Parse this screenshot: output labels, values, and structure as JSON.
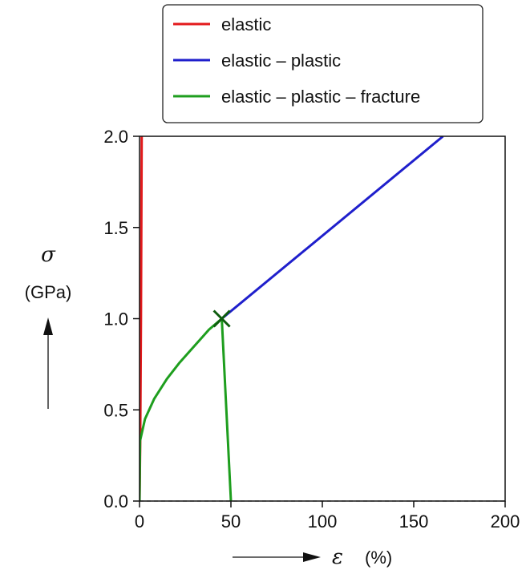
{
  "chart_data": {
    "type": "line",
    "x": {
      "symbol": "ε",
      "unit": "(%)",
      "lim": [
        0,
        200
      ],
      "ticks": [
        0,
        50,
        100,
        150,
        200
      ]
    },
    "y": {
      "symbol": "σ",
      "unit": "(GPa)",
      "lim": [
        0.0,
        2.0
      ],
      "ticks": [
        0.0,
        0.5,
        1.0,
        1.5,
        2.0
      ]
    },
    "tick_labels": {
      "x": [
        "0",
        "50",
        "100",
        "150",
        "200"
      ],
      "y": [
        "0.0",
        "0.5",
        "1.0",
        "1.5",
        "2.0"
      ]
    },
    "legend": {
      "placement": "top-center, above plot"
    },
    "grid": false,
    "baseline": {
      "y": 0,
      "style": "dashed"
    },
    "series": [
      {
        "name": "elastic",
        "color": "#e31a1c",
        "points": [
          [
            0,
            0
          ],
          [
            0.4,
            0.33
          ],
          [
            0.8,
            1.0
          ],
          [
            1.2,
            2.0
          ]
        ]
      },
      {
        "name": "elastic – plastic",
        "color": "#1f1fcc",
        "points": [
          [
            45,
            1.0
          ],
          [
            166,
            2.0
          ]
        ]
      },
      {
        "name": "elastic – plastic – fracture",
        "color": "#1e9e1e",
        "points": [
          [
            0,
            0
          ],
          [
            0.3,
            0.33
          ],
          [
            3,
            0.45
          ],
          [
            8,
            0.56
          ],
          [
            15,
            0.67
          ],
          [
            22,
            0.76
          ],
          [
            30,
            0.85
          ],
          [
            38,
            0.94
          ],
          [
            45,
            1.0
          ],
          [
            50,
            0.0
          ]
        ]
      }
    ],
    "markers": [
      {
        "label": "fracture point",
        "x": 45,
        "y": 1.0,
        "shape": "x",
        "color": "#0d5c0d"
      }
    ]
  }
}
